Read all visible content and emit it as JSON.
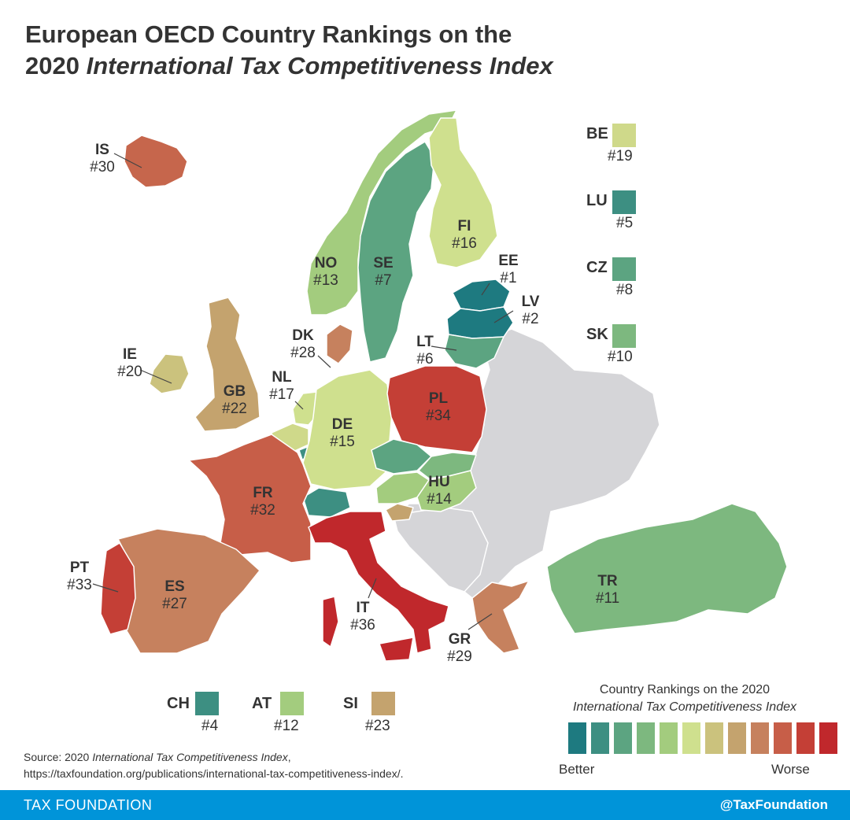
{
  "header": {
    "title_line1": "European OECD Country Rankings on the",
    "title_year": "2020",
    "title_italic": "International Tax Competitiveness Index"
  },
  "colors": {
    "scale": [
      "#1e7a80",
      "#3d8f82",
      "#5ca481",
      "#7db87f",
      "#a3cc7e",
      "#cfe08e",
      "#cbc27d",
      "#c4a36e",
      "#c6815e",
      "#c75e48",
      "#c43f36",
      "#c0282c"
    ],
    "non_oecd": "#d5d5d8",
    "footer": "#0094d9"
  },
  "countries": [
    {
      "code": "IS",
      "rank": "#30",
      "color": "#c6664c"
    },
    {
      "code": "NO",
      "rank": "#13",
      "color": "#a3cc7e"
    },
    {
      "code": "SE",
      "rank": "#7",
      "color": "#5ca481"
    },
    {
      "code": "FI",
      "rank": "#16",
      "color": "#cfe08e"
    },
    {
      "code": "EE",
      "rank": "#1",
      "color": "#1e7a80"
    },
    {
      "code": "LV",
      "rank": "#2",
      "color": "#1e7a80"
    },
    {
      "code": "LT",
      "rank": "#6",
      "color": "#5ca481"
    },
    {
      "code": "DK",
      "rank": "#28",
      "color": "#c6815e"
    },
    {
      "code": "IE",
      "rank": "#20",
      "color": "#cbc27d"
    },
    {
      "code": "GB",
      "rank": "#22",
      "color": "#c4a36e"
    },
    {
      "code": "NL",
      "rank": "#17",
      "color": "#cfe08e"
    },
    {
      "code": "DE",
      "rank": "#15",
      "color": "#cfe08e"
    },
    {
      "code": "PL",
      "rank": "#34",
      "color": "#c43f36"
    },
    {
      "code": "FR",
      "rank": "#32",
      "color": "#c75e48"
    },
    {
      "code": "HU",
      "rank": "#14",
      "color": "#a3cc7e"
    },
    {
      "code": "PT",
      "rank": "#33",
      "color": "#c43f36"
    },
    {
      "code": "ES",
      "rank": "#27",
      "color": "#c6815e"
    },
    {
      "code": "IT",
      "rank": "#36",
      "color": "#c0282c"
    },
    {
      "code": "GR",
      "rank": "#29",
      "color": "#c6815e"
    },
    {
      "code": "TR",
      "rank": "#11",
      "color": "#7db87f"
    }
  ],
  "side_insets": [
    {
      "code": "BE",
      "rank": "#19",
      "color": "#cfd98a"
    },
    {
      "code": "LU",
      "rank": "#5",
      "color": "#3d8f82"
    },
    {
      "code": "CZ",
      "rank": "#8",
      "color": "#5ca481"
    },
    {
      "code": "SK",
      "rank": "#10",
      "color": "#7db87f"
    }
  ],
  "bottom_insets": [
    {
      "code": "CH",
      "rank": "#4",
      "color": "#3d8f82"
    },
    {
      "code": "AT",
      "rank": "#12",
      "color": "#a3cc7e"
    },
    {
      "code": "SI",
      "rank": "#23",
      "color": "#c4a36e"
    }
  ],
  "legend": {
    "title_line1": "Country Rankings on the 2020",
    "title_line2": "International Tax Competitiveness Index",
    "better": "Better",
    "worse": "Worse"
  },
  "source": {
    "prefix": "Source: 2020",
    "italic": "International Tax Competitiveness Index",
    "suffix": ",",
    "url": "https://taxfoundation.org/publications/international-tax-competitiveness-index/."
  },
  "footer": {
    "left": "TAX FOUNDATION",
    "right": "@TaxFoundation"
  }
}
